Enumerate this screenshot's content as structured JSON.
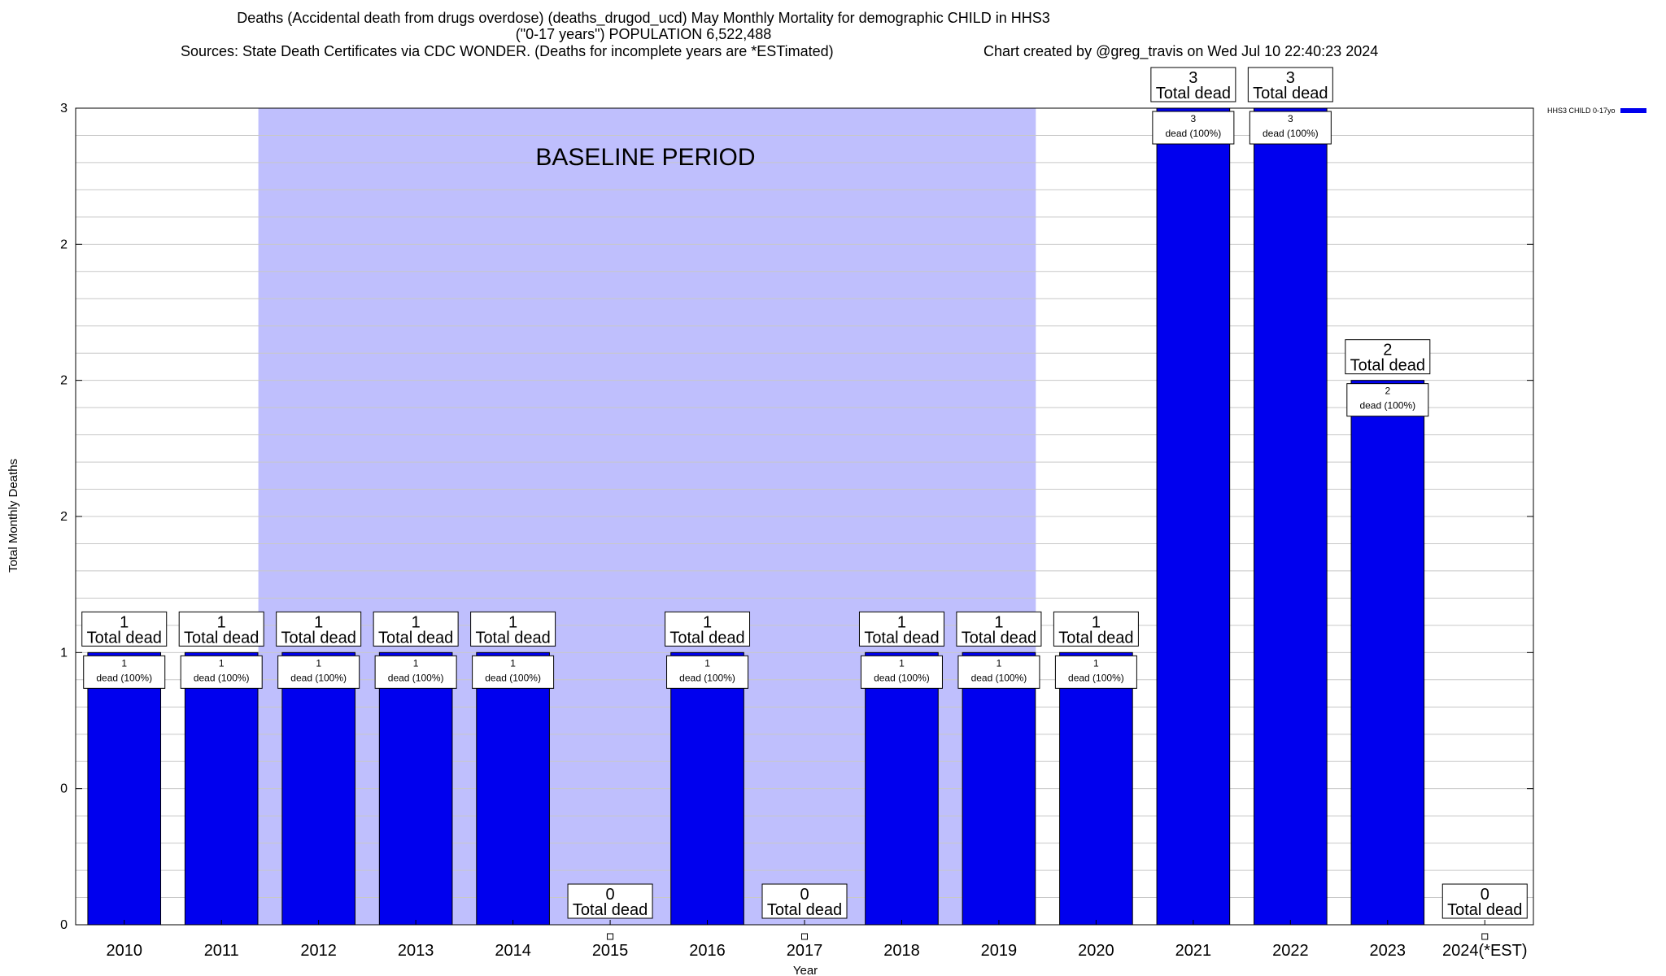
{
  "header": {
    "line1": "Deaths (Accidental death from drugs overdose) (deaths_drugod_ucd) May Monthly Mortality for demographic CHILD in HHS3",
    "line2": "(\"0-17 years\") POPULATION 6,522,488",
    "sources": "Sources: State Death Certificates via CDC WONDER. (Deaths for incomplete years are *ESTimated)",
    "credit": "Chart created by @greg_travis on Wed Jul 10 22:40:23 2024"
  },
  "chart_data": {
    "type": "bar",
    "xlabel": "Year",
    "ylabel": "Total Monthly Deaths",
    "ylim": [
      0,
      3
    ],
    "y_tick_labels": [
      "0",
      "0",
      "1",
      "2",
      "2",
      "2",
      "3"
    ],
    "categories": [
      "2010",
      "2011",
      "2012",
      "2013",
      "2014",
      "2015",
      "2016",
      "2017",
      "2018",
      "2019",
      "2020",
      "2021",
      "2022",
      "2023",
      "2024(*EST)"
    ],
    "series": [
      {
        "name": "HHS3 CHILD 0-17yo",
        "values": [
          1,
          1,
          1,
          1,
          1,
          0,
          1,
          0,
          1,
          1,
          1,
          3,
          3,
          2,
          0
        ]
      }
    ],
    "total_labels": [
      "1",
      "1",
      "1",
      "1",
      "1",
      "0",
      "1",
      "0",
      "1",
      "1",
      "1",
      "3",
      "3",
      "2",
      "0"
    ],
    "total_suffix": "Total dead",
    "bar_label_suffix": "dead (100%)",
    "baseline": {
      "label": "BASELINE PERIOD",
      "start": "2012",
      "end": "2019"
    },
    "grid": true,
    "legend_position": "top-right",
    "colors": {
      "bar": "#0000ee",
      "baseline": "#bfbffd",
      "grid": "#c8c8c8"
    }
  }
}
